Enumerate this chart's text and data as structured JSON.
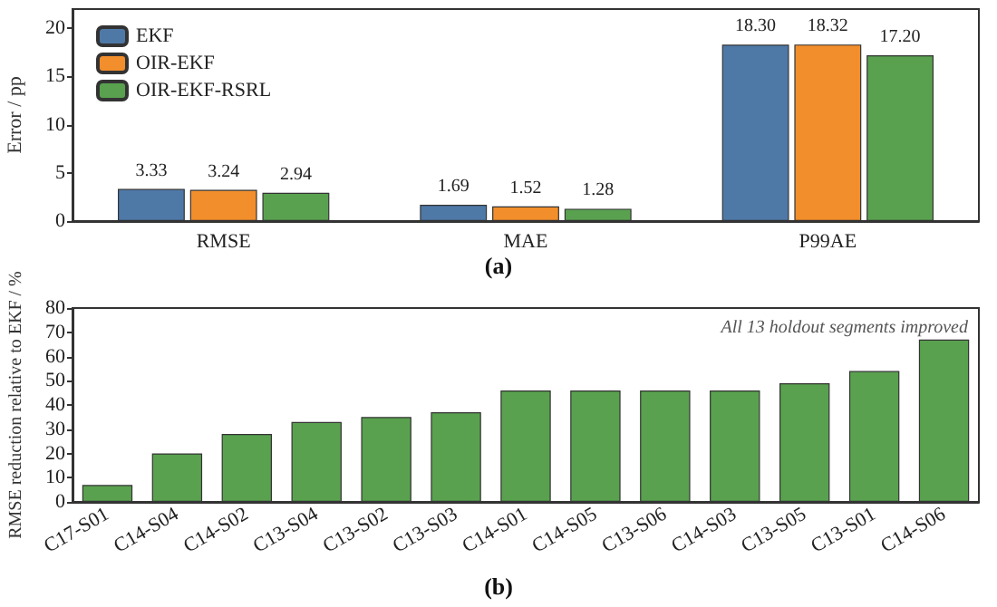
{
  "chart_data": [
    {
      "type": "bar",
      "title": "(a)",
      "ylabel": "Error / pp",
      "categories": [
        "RMSE",
        "MAE",
        "P99AE"
      ],
      "series": [
        {
          "name": "EKF",
          "color": "#4e79a7",
          "values": [
            3.33,
            1.69,
            18.3
          ],
          "value_labels": [
            "3.33",
            "1.69",
            "18.30"
          ]
        },
        {
          "name": "OIR-EKF",
          "color": "#f28e2b",
          "values": [
            3.24,
            1.52,
            18.32
          ],
          "value_labels": [
            "3.24",
            "1.52",
            "18.32"
          ]
        },
        {
          "name": "OIR-EKF-RSRL",
          "color": "#59a14f",
          "values": [
            2.94,
            1.28,
            17.2
          ],
          "value_labels": [
            "2.94",
            "1.28",
            "17.20"
          ]
        }
      ],
      "ylim": [
        0,
        22
      ],
      "yticks": [
        0,
        5,
        10,
        15,
        20
      ],
      "grid": false,
      "legend": "top left"
    },
    {
      "type": "bar",
      "title": "(b)",
      "ylabel": "RMSE reduction relative to EKF / %",
      "categories": [
        "C17-S01",
        "C14-S04",
        "C14-S02",
        "C13-S04",
        "C13-S02",
        "C13-S03",
        "C14-S01",
        "C14-S05",
        "C13-S06",
        "C14-S03",
        "C13-S05",
        "C13-S01",
        "C14-S06"
      ],
      "values": [
        7,
        20,
        28,
        33,
        35,
        37,
        46,
        46,
        46,
        46,
        49,
        54,
        67
      ],
      "color": "#59a14f",
      "ylim": [
        0,
        80
      ],
      "yticks": [
        0,
        10,
        20,
        30,
        40,
        50,
        60,
        70,
        80
      ],
      "grid": false,
      "annotations": [
        "All 13 holdout segments improved"
      ]
    }
  ]
}
